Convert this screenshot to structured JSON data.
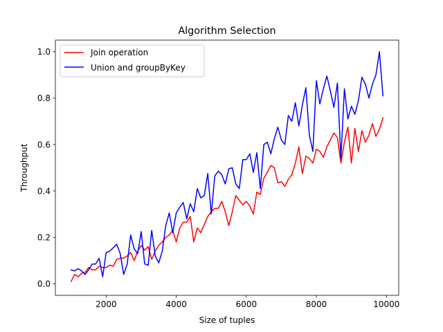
{
  "chart_data": {
    "type": "line",
    "title": "Algorithm Selection",
    "xlabel": "Size of tuples",
    "ylabel": "Throughput",
    "xlim": [
      550,
      10350
    ],
    "ylim": [
      -0.05,
      1.05
    ],
    "xticks": [
      2000,
      4000,
      6000,
      8000,
      10000
    ],
    "yticks": [
      0.0,
      0.2,
      0.4,
      0.6,
      0.8,
      1.0
    ],
    "grid": false,
    "legend_position": "upper-left",
    "x": [
      1000,
      1100,
      1200,
      1300,
      1400,
      1500,
      1600,
      1700,
      1800,
      1900,
      2000,
      2100,
      2200,
      2300,
      2400,
      2500,
      2600,
      2700,
      2800,
      2900,
      3000,
      3100,
      3200,
      3300,
      3400,
      3500,
      3600,
      3700,
      3800,
      3900,
      4000,
      4100,
      4200,
      4300,
      4400,
      4500,
      4600,
      4700,
      4800,
      4900,
      5000,
      5100,
      5200,
      5300,
      5400,
      5500,
      5600,
      5700,
      5800,
      5900,
      6000,
      6100,
      6200,
      6300,
      6400,
      6500,
      6600,
      6700,
      6800,
      6900,
      7000,
      7100,
      7200,
      7300,
      7400,
      7500,
      7600,
      7700,
      7800,
      7900,
      8000,
      8100,
      8200,
      8300,
      8400,
      8500,
      8600,
      8700,
      8800,
      8900,
      9000,
      9100,
      9200,
      9300,
      9400,
      9500,
      9600,
      9700,
      9800,
      9900
    ],
    "series": [
      {
        "name": "Join operation",
        "color": "#ff0000",
        "values": [
          0.01,
          0.04,
          0.03,
          0.045,
          0.05,
          0.07,
          0.06,
          0.06,
          0.075,
          0.07,
          0.07,
          0.08,
          0.075,
          0.105,
          0.11,
          0.11,
          0.12,
          0.135,
          0.1,
          0.14,
          0.165,
          0.145,
          0.16,
          0.105,
          0.14,
          0.165,
          0.18,
          0.2,
          0.21,
          0.23,
          0.18,
          0.24,
          0.265,
          0.265,
          0.29,
          0.18,
          0.24,
          0.22,
          0.255,
          0.29,
          0.31,
          0.325,
          0.325,
          0.355,
          0.31,
          0.25,
          0.31,
          0.38,
          0.36,
          0.34,
          0.355,
          0.335,
          0.3,
          0.395,
          0.385,
          0.455,
          0.48,
          0.51,
          0.5,
          0.435,
          0.44,
          0.42,
          0.45,
          0.47,
          0.52,
          0.59,
          0.475,
          0.55,
          0.54,
          0.52,
          0.58,
          0.57,
          0.545,
          0.59,
          0.62,
          0.65,
          0.63,
          0.52,
          0.61,
          0.675,
          0.52,
          0.67,
          0.57,
          0.66,
          0.61,
          0.64,
          0.69,
          0.635,
          0.665,
          0.715
        ]
      },
      {
        "name": "Union and groupByKey",
        "color": "#0000ff",
        "values": [
          0.06,
          0.055,
          0.065,
          0.055,
          0.04,
          0.06,
          0.085,
          0.085,
          0.11,
          0.03,
          0.135,
          0.14,
          0.155,
          0.17,
          0.13,
          0.04,
          0.085,
          0.21,
          0.15,
          0.13,
          0.225,
          0.085,
          0.08,
          0.23,
          0.12,
          0.09,
          0.14,
          0.25,
          0.305,
          0.22,
          0.305,
          0.33,
          0.35,
          0.28,
          0.345,
          0.31,
          0.41,
          0.37,
          0.38,
          0.475,
          0.3,
          0.465,
          0.485,
          0.47,
          0.43,
          0.495,
          0.5,
          0.43,
          0.41,
          0.535,
          0.535,
          0.56,
          0.48,
          0.565,
          0.41,
          0.6,
          0.61,
          0.56,
          0.625,
          0.675,
          0.62,
          0.6,
          0.725,
          0.7,
          0.78,
          0.68,
          0.77,
          0.845,
          0.64,
          0.57,
          0.875,
          0.775,
          0.84,
          0.895,
          0.83,
          0.76,
          0.865,
          0.54,
          0.84,
          0.71,
          0.765,
          0.73,
          0.79,
          0.89,
          0.86,
          0.8,
          0.86,
          0.9,
          1.0,
          0.81
        ]
      }
    ]
  }
}
